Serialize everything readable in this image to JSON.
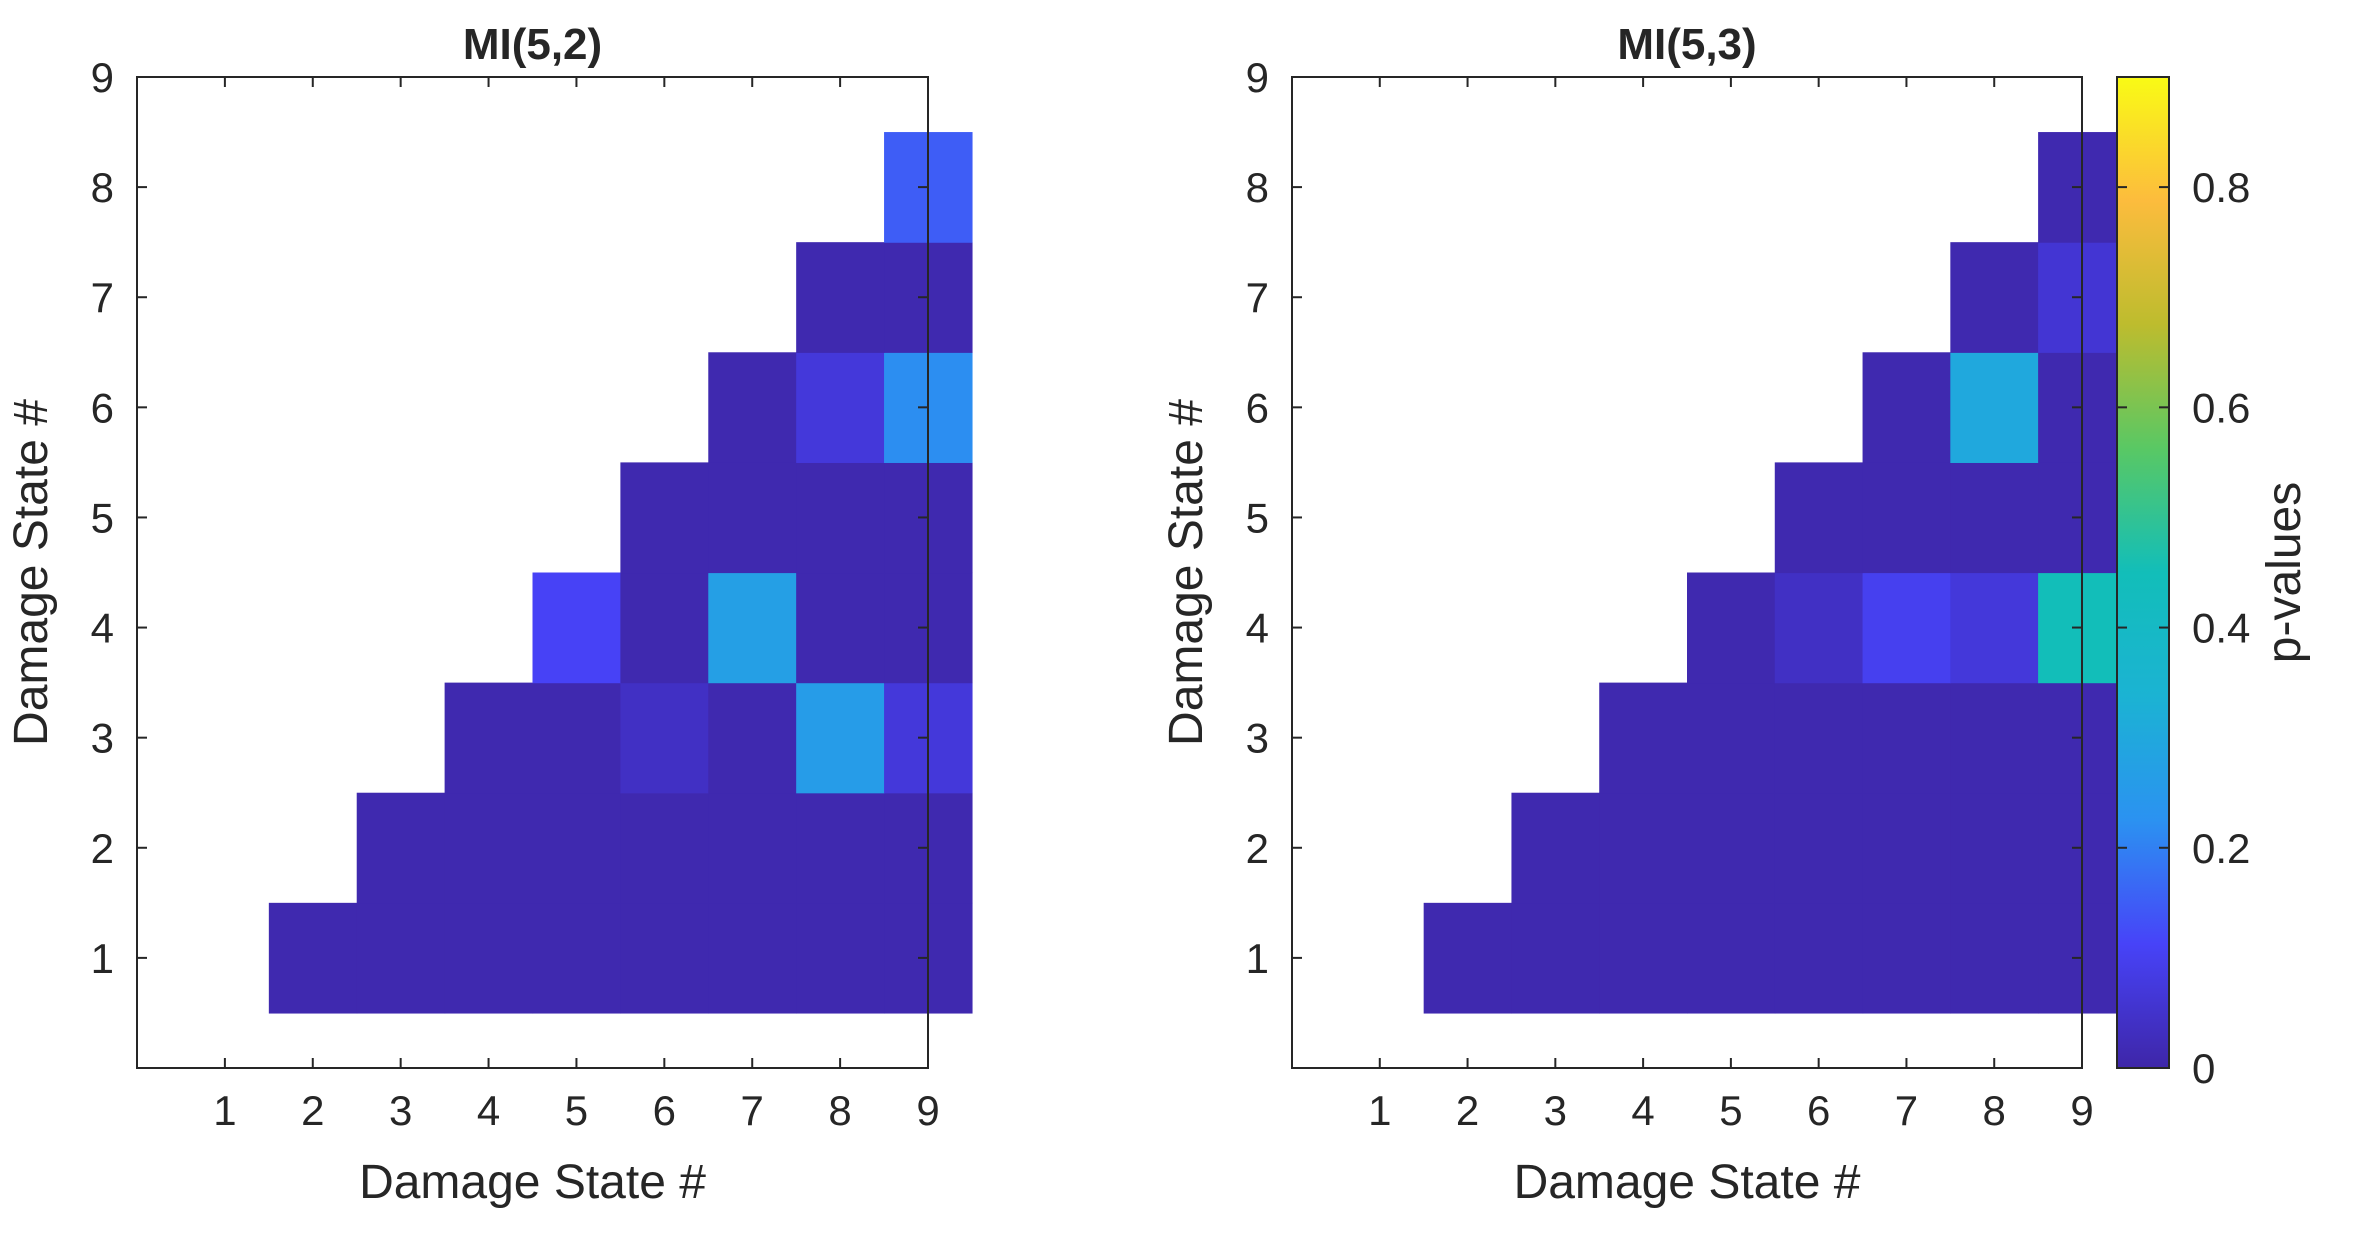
{
  "chart_data": [
    {
      "type": "heatmap",
      "title": "MI(5,2)",
      "xlabel": "Damage State #",
      "ylabel": "Damage State #",
      "x": [
        1,
        2,
        3,
        4,
        5,
        6,
        7,
        8,
        9
      ],
      "y": [
        1,
        2,
        3,
        4,
        5,
        6,
        7,
        8,
        9
      ],
      "ticks": [
        "1",
        "2",
        "3",
        "4",
        "5",
        "6",
        "7",
        "8",
        "9"
      ],
      "cells": [
        {
          "x": 2,
          "y": 1,
          "value": 0.01
        },
        {
          "x": 3,
          "y": 1,
          "value": 0.01
        },
        {
          "x": 4,
          "y": 1,
          "value": 0.01
        },
        {
          "x": 5,
          "y": 1,
          "value": 0.01
        },
        {
          "x": 6,
          "y": 1,
          "value": 0.01
        },
        {
          "x": 7,
          "y": 1,
          "value": 0.01
        },
        {
          "x": 8,
          "y": 1,
          "value": 0.01
        },
        {
          "x": 9,
          "y": 1,
          "value": 0.01
        },
        {
          "x": 3,
          "y": 2,
          "value": 0.01
        },
        {
          "x": 4,
          "y": 2,
          "value": 0.01
        },
        {
          "x": 5,
          "y": 2,
          "value": 0.01
        },
        {
          "x": 6,
          "y": 2,
          "value": 0.01
        },
        {
          "x": 7,
          "y": 2,
          "value": 0.01
        },
        {
          "x": 8,
          "y": 2,
          "value": 0.01
        },
        {
          "x": 9,
          "y": 2,
          "value": 0.01
        },
        {
          "x": 4,
          "y": 3,
          "value": 0.01
        },
        {
          "x": 5,
          "y": 3,
          "value": 0.01
        },
        {
          "x": 6,
          "y": 3,
          "value": 0.04
        },
        {
          "x": 7,
          "y": 3,
          "value": 0.01
        },
        {
          "x": 8,
          "y": 3,
          "value": 0.26
        },
        {
          "x": 9,
          "y": 3,
          "value": 0.07
        },
        {
          "x": 5,
          "y": 4,
          "value": 0.11
        },
        {
          "x": 6,
          "y": 4,
          "value": 0.01
        },
        {
          "x": 7,
          "y": 4,
          "value": 0.27
        },
        {
          "x": 8,
          "y": 4,
          "value": 0.01
        },
        {
          "x": 9,
          "y": 4,
          "value": 0.01
        },
        {
          "x": 6,
          "y": 5,
          "value": 0.01
        },
        {
          "x": 7,
          "y": 5,
          "value": 0.01
        },
        {
          "x": 8,
          "y": 5,
          "value": 0.01
        },
        {
          "x": 9,
          "y": 5,
          "value": 0.01
        },
        {
          "x": 7,
          "y": 6,
          "value": 0.01
        },
        {
          "x": 8,
          "y": 6,
          "value": 0.07
        },
        {
          "x": 9,
          "y": 6,
          "value": 0.22
        },
        {
          "x": 8,
          "y": 7,
          "value": 0.01
        },
        {
          "x": 9,
          "y": 7,
          "value": 0.01
        },
        {
          "x": 9,
          "y": 8,
          "value": 0.15
        }
      ]
    },
    {
      "type": "heatmap",
      "title": "MI(5,3)",
      "xlabel": "Damage State #",
      "ylabel": "Damage State #",
      "x": [
        1,
        2,
        3,
        4,
        5,
        6,
        7,
        8,
        9
      ],
      "y": [
        1,
        2,
        3,
        4,
        5,
        6,
        7,
        8,
        9
      ],
      "ticks": [
        "1",
        "2",
        "3",
        "4",
        "5",
        "6",
        "7",
        "8",
        "9"
      ],
      "cells": [
        {
          "x": 2,
          "y": 1,
          "value": 0.01
        },
        {
          "x": 3,
          "y": 1,
          "value": 0.01
        },
        {
          "x": 4,
          "y": 1,
          "value": 0.01
        },
        {
          "x": 5,
          "y": 1,
          "value": 0.01
        },
        {
          "x": 6,
          "y": 1,
          "value": 0.01
        },
        {
          "x": 7,
          "y": 1,
          "value": 0.01
        },
        {
          "x": 8,
          "y": 1,
          "value": 0.01
        },
        {
          "x": 9,
          "y": 1,
          "value": 0.01
        },
        {
          "x": 3,
          "y": 2,
          "value": 0.01
        },
        {
          "x": 4,
          "y": 2,
          "value": 0.01
        },
        {
          "x": 5,
          "y": 2,
          "value": 0.01
        },
        {
          "x": 6,
          "y": 2,
          "value": 0.01
        },
        {
          "x": 7,
          "y": 2,
          "value": 0.01
        },
        {
          "x": 8,
          "y": 2,
          "value": 0.01
        },
        {
          "x": 9,
          "y": 2,
          "value": 0.01
        },
        {
          "x": 4,
          "y": 3,
          "value": 0.01
        },
        {
          "x": 5,
          "y": 3,
          "value": 0.01
        },
        {
          "x": 6,
          "y": 3,
          "value": 0.01
        },
        {
          "x": 7,
          "y": 3,
          "value": 0.01
        },
        {
          "x": 8,
          "y": 3,
          "value": 0.01
        },
        {
          "x": 9,
          "y": 3,
          "value": 0.01
        },
        {
          "x": 5,
          "y": 4,
          "value": 0.01
        },
        {
          "x": 6,
          "y": 4,
          "value": 0.04
        },
        {
          "x": 7,
          "y": 4,
          "value": 0.1
        },
        {
          "x": 8,
          "y": 4,
          "value": 0.07
        },
        {
          "x": 9,
          "y": 4,
          "value": 0.45
        },
        {
          "x": 6,
          "y": 5,
          "value": 0.01
        },
        {
          "x": 7,
          "y": 5,
          "value": 0.01
        },
        {
          "x": 8,
          "y": 5,
          "value": 0.01
        },
        {
          "x": 9,
          "y": 5,
          "value": 0.01
        },
        {
          "x": 7,
          "y": 6,
          "value": 0.01
        },
        {
          "x": 8,
          "y": 6,
          "value": 0.3
        },
        {
          "x": 9,
          "y": 6,
          "value": 0.01
        },
        {
          "x": 8,
          "y": 7,
          "value": 0.01
        },
        {
          "x": 9,
          "y": 7,
          "value": 0.06
        },
        {
          "x": 9,
          "y": 8,
          "value": 0.01
        }
      ]
    }
  ],
  "colorbar": {
    "label": "p-values",
    "range": [
      0,
      0.9
    ],
    "tick_values": [
      0,
      0.2,
      0.4,
      0.6,
      0.8
    ],
    "tick_labels": [
      "0",
      "0.2",
      "0.4",
      "0.6",
      "0.8"
    ],
    "colormap": [
      "#3e26a8",
      "#4743f8",
      "#2b92f1",
      "#1bb3d3",
      "#12beb9",
      "#59c864",
      "#bdbc2e",
      "#fcbc3d",
      "#f9fb15"
    ]
  }
}
